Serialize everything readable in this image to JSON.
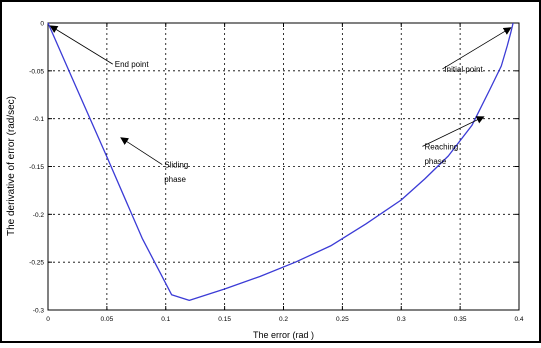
{
  "chart_data": {
    "type": "line",
    "xlabel": "The error (rad )",
    "ylabel": "The derivative of error (rad/sec)",
    "xlim": [
      0,
      0.4
    ],
    "ylim": [
      -0.3,
      0
    ],
    "x_ticks": [
      {
        "value": 0,
        "label": "0"
      },
      {
        "value": 0.05,
        "label": "0.05"
      },
      {
        "value": 0.1,
        "label": "0.1"
      },
      {
        "value": 0.15,
        "label": "0.15"
      },
      {
        "value": 0.2,
        "label": "0.2"
      },
      {
        "value": 0.25,
        "label": "0.25"
      },
      {
        "value": 0.3,
        "label": "0.3"
      },
      {
        "value": 0.35,
        "label": "0.35"
      },
      {
        "value": 0.4,
        "label": "0.4"
      }
    ],
    "y_ticks": [
      {
        "value": 0,
        "label": "0"
      },
      {
        "value": -0.05,
        "label": "-0.05"
      },
      {
        "value": -0.1,
        "label": "-0.1"
      },
      {
        "value": -0.15,
        "label": "-0.15"
      },
      {
        "value": -0.2,
        "label": "-0.2"
      },
      {
        "value": -0.25,
        "label": "-0.25"
      },
      {
        "value": -0.3,
        "label": "-0.3"
      }
    ],
    "grid": true,
    "series": [
      {
        "color": "#3b3bd6",
        "x": [
          0.0,
          0.02,
          0.05,
          0.08,
          0.105,
          0.12,
          0.15,
          0.18,
          0.21,
          0.24,
          0.27,
          0.3,
          0.32,
          0.34,
          0.36,
          0.375,
          0.385,
          0.39,
          0.393,
          0.395
        ],
        "y": [
          0.0,
          -0.056,
          -0.14,
          -0.225,
          -0.284,
          -0.29,
          -0.278,
          -0.265,
          -0.25,
          -0.233,
          -0.21,
          -0.185,
          -0.163,
          -0.139,
          -0.107,
          -0.07,
          -0.045,
          -0.024,
          -0.01,
          0.0
        ]
      }
    ],
    "annotations": [
      {
        "text": "End point",
        "x": 0.002,
        "y": -0.003,
        "label_x": 0.055,
        "label_y": -0.043
      },
      {
        "text": "Sliding phase",
        "x": 0.062,
        "y": -0.12,
        "label_x": 0.097,
        "label_y": -0.148,
        "label_y2": -0.163
      },
      {
        "text": "Initial point",
        "x": 0.393,
        "y": -0.005,
        "label_x": 0.335,
        "label_y": -0.048
      },
      {
        "text": "Reaching phase",
        "x": 0.37,
        "y": -0.098,
        "label_x": 0.318,
        "label_y": -0.129,
        "label_y2": -0.144
      }
    ]
  }
}
